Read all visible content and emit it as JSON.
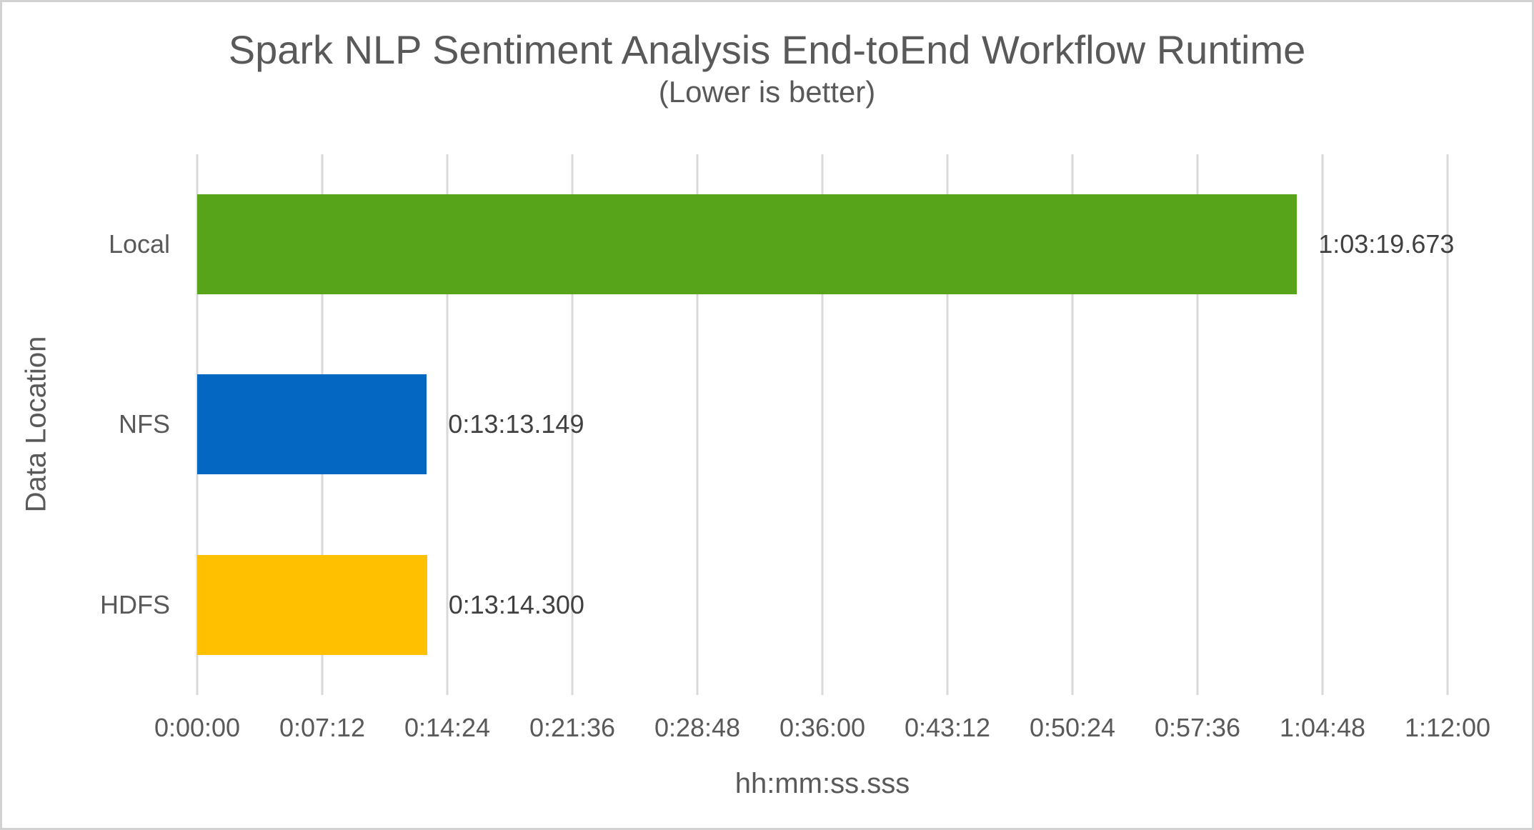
{
  "chart_data": {
    "type": "bar",
    "orientation": "horizontal",
    "title": "Spark NLP Sentiment Analysis End-toEnd Workflow Runtime",
    "subtitle": "(Lower is better)",
    "xlabel": "hh:mm:ss.sss",
    "ylabel": "Data Location",
    "grid": true,
    "legend": "none",
    "xlim_seconds": [
      0,
      4320
    ],
    "x_tick_step_seconds": 432,
    "x_ticks": [
      "0:00:00",
      "0:07:12",
      "0:14:24",
      "0:21:36",
      "0:28:48",
      "0:36:00",
      "0:43:12",
      "0:50:24",
      "0:57:36",
      "1:04:48",
      "1:12:00"
    ],
    "categories": [
      "Local",
      "NFS",
      "HDFS"
    ],
    "values_seconds": [
      3799.673,
      793.149,
      794.3
    ],
    "value_labels": [
      "1:03:19.673",
      "0:13:13.149",
      "0:13:14.300"
    ],
    "bar_colors": [
      "#57a41b",
      "#0467c2",
      "#ffc000"
    ]
  },
  "colors": {
    "gridline": "#d9d9d9",
    "canvas_border": "#d2d2d2",
    "axis_text": "#595959",
    "value_text": "#404040",
    "background": "#ffffff"
  }
}
